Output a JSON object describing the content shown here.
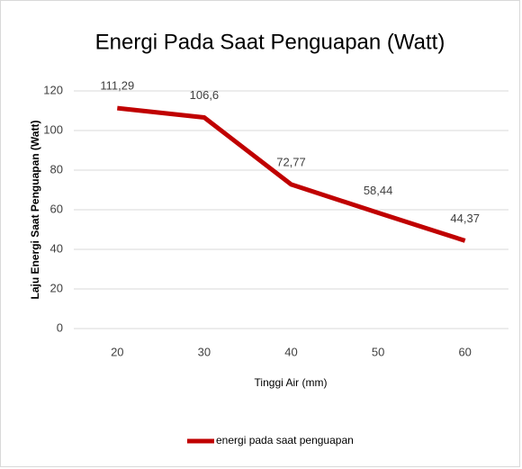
{
  "chart_data": {
    "type": "line",
    "title": "Energi Pada Saat Penguapan (Watt)",
    "x_label": "Tinggi Air (mm)",
    "y_label": "Laju Energi Saat Penguapan (Watt)",
    "categories": [
      20,
      30,
      40,
      50,
      60
    ],
    "series": [
      {
        "name": "energi pada saat penguapan",
        "color": "#c00000",
        "values": [
          111.29,
          106.6,
          72.77,
          58.44,
          44.37
        ],
        "value_labels": [
          "111,29",
          "106,6",
          "72,77",
          "58,44",
          "44,37"
        ]
      }
    ],
    "ylim": [
      0,
      120
    ],
    "yticks": [
      0,
      20,
      40,
      60,
      80,
      100,
      120
    ],
    "grid": true,
    "legend": "bottom"
  }
}
